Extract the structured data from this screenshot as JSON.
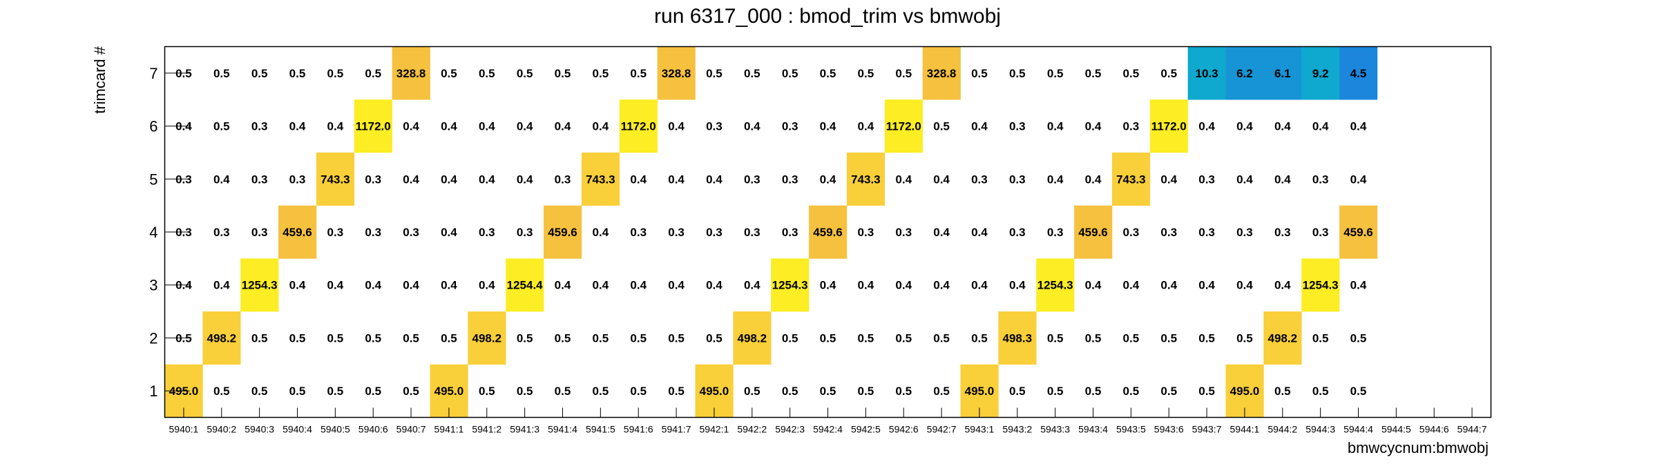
{
  "chart_data": {
    "type": "heatmap",
    "title": "run 6317_000 : bmod_trim vs bmwobj",
    "xlabel": "bmwcycnum:bmwobj",
    "ylabel": "trimcard #",
    "x_categories": [
      "5940:1",
      "5940:2",
      "5940:3",
      "5940:4",
      "5940:5",
      "5940:6",
      "5940:7",
      "5941:1",
      "5941:2",
      "5941:3",
      "5941:4",
      "5941:5",
      "5941:6",
      "5941:7",
      "5942:1",
      "5942:2",
      "5942:3",
      "5942:4",
      "5942:5",
      "5942:6",
      "5942:7",
      "5943:1",
      "5943:2",
      "5943:3",
      "5943:4",
      "5943:5",
      "5943:6",
      "5943:7",
      "5944:1",
      "5944:2",
      "5944:3",
      "5944:4",
      "5944:5",
      "5944:6",
      "5944:7"
    ],
    "y_categories": [
      "1",
      "2",
      "3",
      "4",
      "5",
      "6",
      "7"
    ],
    "values": [
      [
        495.0,
        0.5,
        0.5,
        0.5,
        0.5,
        0.5,
        0.5,
        495.0,
        0.5,
        0.5,
        0.5,
        0.5,
        0.5,
        0.5,
        495.0,
        0.5,
        0.5,
        0.5,
        0.5,
        0.5,
        0.5,
        495.0,
        0.5,
        0.5,
        0.5,
        0.5,
        0.5,
        0.5,
        495.0,
        0.5,
        0.5,
        0.5,
        null,
        null,
        null
      ],
      [
        0.5,
        498.2,
        0.5,
        0.5,
        0.5,
        0.5,
        0.5,
        0.5,
        498.2,
        0.5,
        0.5,
        0.5,
        0.5,
        0.5,
        0.5,
        498.2,
        0.5,
        0.5,
        0.5,
        0.5,
        0.5,
        0.5,
        498.3,
        0.5,
        0.5,
        0.5,
        0.5,
        0.5,
        0.5,
        498.2,
        0.5,
        0.5,
        null,
        null,
        null
      ],
      [
        0.4,
        0.4,
        1254.3,
        0.4,
        0.4,
        0.4,
        0.4,
        0.4,
        0.4,
        1254.4,
        0.4,
        0.4,
        0.4,
        0.4,
        0.4,
        0.4,
        1254.3,
        0.4,
        0.4,
        0.4,
        0.4,
        0.4,
        0.4,
        1254.3,
        0.4,
        0.4,
        0.4,
        0.4,
        0.4,
        0.4,
        1254.3,
        0.4,
        null,
        null,
        null
      ],
      [
        0.3,
        0.3,
        0.3,
        459.6,
        0.3,
        0.3,
        0.3,
        0.4,
        0.3,
        0.3,
        459.6,
        0.4,
        0.3,
        0.3,
        0.3,
        0.3,
        0.3,
        459.6,
        0.3,
        0.3,
        0.4,
        0.4,
        0.3,
        0.3,
        459.6,
        0.3,
        0.3,
        0.3,
        0.3,
        0.3,
        0.3,
        459.6,
        null,
        null,
        null
      ],
      [
        0.3,
        0.4,
        0.3,
        0.3,
        743.3,
        0.3,
        0.4,
        0.4,
        0.4,
        0.4,
        0.3,
        743.3,
        0.4,
        0.4,
        0.4,
        0.3,
        0.3,
        0.4,
        743.3,
        0.4,
        0.4,
        0.3,
        0.3,
        0.4,
        0.4,
        743.3,
        0.4,
        0.3,
        0.4,
        0.4,
        0.3,
        0.4,
        null,
        null,
        null
      ],
      [
        0.4,
        0.5,
        0.3,
        0.4,
        0.4,
        1172.0,
        0.4,
        0.4,
        0.4,
        0.4,
        0.4,
        0.4,
        1172.0,
        0.4,
        0.3,
        0.4,
        0.3,
        0.4,
        0.4,
        1172.0,
        0.5,
        0.4,
        0.3,
        0.4,
        0.4,
        0.3,
        1172.0,
        0.4,
        0.4,
        0.4,
        0.4,
        0.4,
        null,
        null,
        null
      ],
      [
        0.5,
        0.5,
        0.5,
        0.5,
        0.5,
        0.5,
        328.8,
        0.5,
        0.5,
        0.5,
        0.5,
        0.5,
        0.5,
        328.8,
        0.5,
        0.5,
        0.5,
        0.5,
        0.5,
        0.5,
        328.8,
        0.5,
        0.5,
        0.5,
        0.5,
        0.5,
        0.5,
        10.3,
        6.2,
        6.1,
        9.2,
        4.5,
        null,
        null,
        null
      ]
    ],
    "value_format": "one decimal",
    "colors": {
      "high": "#fced24",
      "mid_high": "#f9cf3a",
      "mid": "#f5c13e",
      "low_teal": "#0fa8ce",
      "low_blue": "#1b86dc",
      "low_mid": "#1794d5"
    },
    "grid": false
  }
}
